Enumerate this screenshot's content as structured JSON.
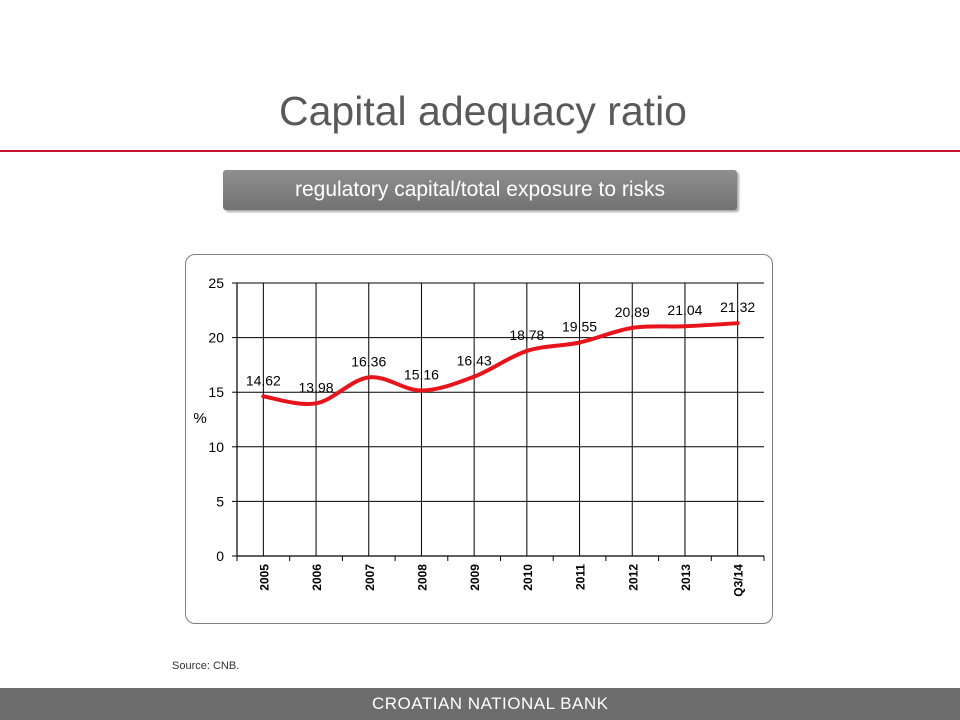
{
  "slide": {
    "title": "Capital adequacy ratio",
    "subtitle": "regulatory capital/total exposure to risks",
    "source": "Source: CNB.",
    "footer": "CROATIAN NATIONAL BANK"
  },
  "colors": {
    "accent": "#c8102e",
    "line": "#e8141c",
    "footer_bg": "#6d6d6d",
    "subtitle_bg": "#808080"
  },
  "chart_data": {
    "type": "line",
    "categories": [
      "2005",
      "2006",
      "2007",
      "2008",
      "2009",
      "2010",
      "2011",
      "2012",
      "2013",
      "Q3/14"
    ],
    "values": [
      14.62,
      13.98,
      16.36,
      15.16,
      16.43,
      18.78,
      19.55,
      20.89,
      21.04,
      21.32
    ],
    "data_labels": [
      "14.62",
      "13.98",
      "16.36",
      "15.16",
      "16.43",
      "18.78",
      "19.55",
      "20.89",
      "21.04",
      "21.32"
    ],
    "ylabel": "%",
    "ylim": [
      0,
      25
    ],
    "yticks": [
      "0",
      "5",
      "10",
      "15",
      "20",
      "25"
    ],
    "grid": true,
    "smooth": true,
    "legend": "none"
  }
}
